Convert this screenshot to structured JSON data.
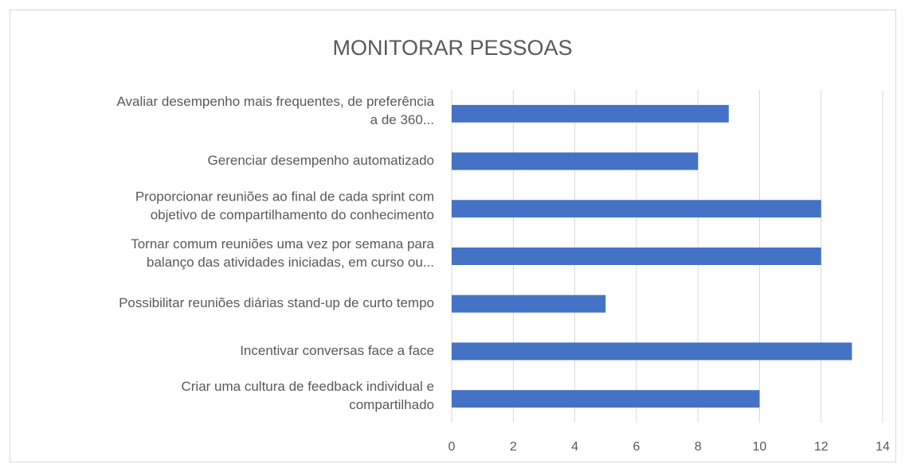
{
  "chart_data": {
    "type": "bar",
    "orientation": "horizontal",
    "title": "MONITORAR PESSOAS",
    "categories": [
      [
        "Avaliar desempenho mais frequentes, de preferência",
        "a de 360..."
      ],
      [
        "Gerenciar desempenho automatizado"
      ],
      [
        "Proporcionar reuniões ao final de cada sprint com",
        "objetivo de compartilhamento do conhecimento"
      ],
      [
        "Tornar comum reuniões uma vez por semana para",
        "balanço das atividades iniciadas, em curso ou..."
      ],
      [
        "Possibilitar reuniões diárias stand-up de curto tempo"
      ],
      [
        "Incentivar conversas face a face"
      ],
      [
        "Criar uma cultura de feedback individual e",
        "compartilhado"
      ]
    ],
    "values": [
      9,
      8,
      12,
      12,
      5,
      13,
      10
    ],
    "color": "#4472c4",
    "xlim": [
      0,
      14
    ],
    "xticks": [
      0,
      2,
      4,
      6,
      8,
      10,
      12,
      14
    ],
    "grid": true
  }
}
